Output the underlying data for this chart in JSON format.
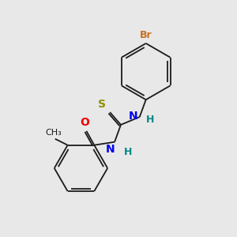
{
  "background_color": "#e8e8e8",
  "bond_color": "#1a1a1a",
  "atom_colors": {
    "Br": "#c87020",
    "N": "#0000ee",
    "H": "#008888",
    "S": "#909000",
    "O": "#ee0000",
    "C": "#1a1a1a"
  },
  "figsize": [
    3.0,
    3.0
  ],
  "dpi": 100
}
